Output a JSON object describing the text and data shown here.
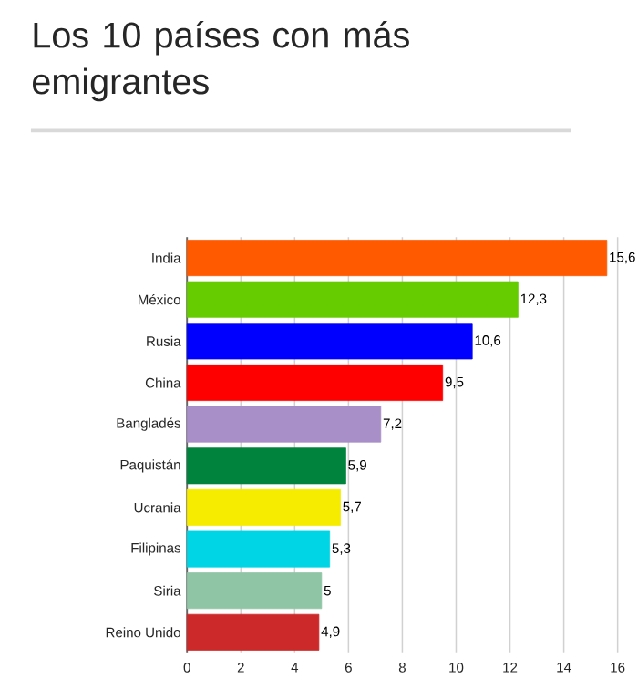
{
  "chart_data": {
    "type": "bar",
    "orientation": "horizontal",
    "title": "Los 10 países con más emigrantes",
    "categories": [
      "India",
      "México",
      "Rusia",
      "China",
      "Bangladés",
      "Paquistán",
      "Ucrania",
      "Filipinas",
      "Siria",
      "Reino Unido"
    ],
    "values": [
      15.6,
      12.3,
      10.6,
      9.5,
      7.2,
      5.9,
      5.7,
      5.3,
      5,
      4.9
    ],
    "value_labels": [
      "15,6",
      "12,3",
      "10,6",
      "9,5",
      "7,2",
      "5,9",
      "5,7",
      "5,3",
      "5",
      "4,9"
    ],
    "colors": [
      "#ff5a00",
      "#66cc00",
      "#0000ff",
      "#ff0000",
      "#a98fc8",
      "#00843d",
      "#f5ec00",
      "#00d5e6",
      "#8fc5a5",
      "#cc2a2a"
    ],
    "xlim": [
      0,
      16
    ],
    "xticks": [
      0,
      2,
      4,
      6,
      8,
      10,
      12,
      14,
      16
    ],
    "grid": "x"
  }
}
